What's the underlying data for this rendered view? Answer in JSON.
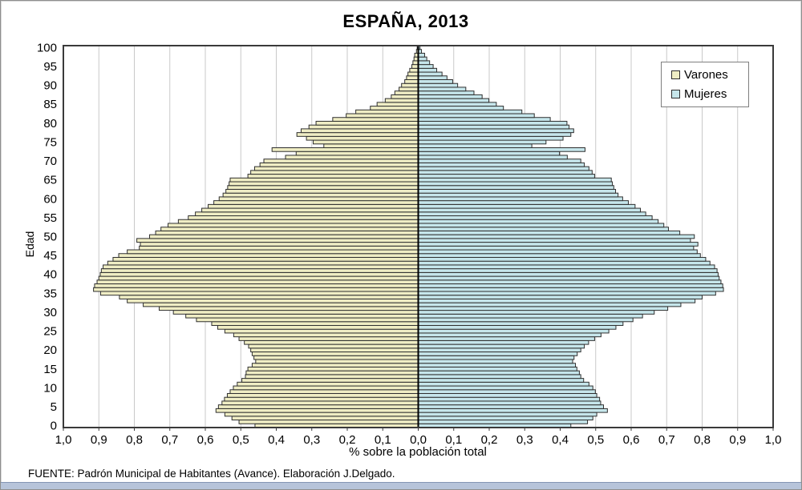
{
  "footer": {
    "source_text": "FUENTE: Padrón Municipal de Habitantes (Avance). Elaboración J.Delgado."
  },
  "chart_data": {
    "type": "bar",
    "subtype": "population-pyramid",
    "title": "ESPAÑA, 2013",
    "xlabel": "% sobre la población total",
    "ylabel": "Edad",
    "grid": "vertical-only",
    "gridline_color": "#c9c9c9",
    "bar_outline_color": "#2f2f2f",
    "axis_color": "#3a3a3a",
    "x_axis": {
      "min": -1.0,
      "max": 1.0,
      "tick_step": 0.1,
      "decimal_separator": ",",
      "tick_labels": [
        "1,0",
        "0,9",
        "0,8",
        "0,7",
        "0,6",
        "0,5",
        "0,4",
        "0,3",
        "0,2",
        "0,1",
        "0,0",
        "0,1",
        "0,2",
        "0,3",
        "0,4",
        "0,5",
        "0,6",
        "0,7",
        "0,8",
        "0,9",
        "1,0"
      ]
    },
    "y_axis": {
      "min": 0,
      "max": 100,
      "tick_step": 5
    },
    "legend": {
      "position": "top-right",
      "entries": [
        {
          "label": "Varones",
          "color": "#EFEDC4"
        },
        {
          "label": "Mujeres",
          "color": "#C6E6EB"
        }
      ]
    },
    "age_min": 0,
    "age_step": 1,
    "series": [
      {
        "name": "Varones",
        "side": "left",
        "color": "#EFEDC4",
        "values": [
          0.46,
          0.505,
          0.525,
          0.545,
          0.57,
          0.563,
          0.553,
          0.546,
          0.538,
          0.53,
          0.521,
          0.51,
          0.497,
          0.487,
          0.485,
          0.48,
          0.468,
          0.458,
          0.463,
          0.468,
          0.472,
          0.478,
          0.49,
          0.505,
          0.52,
          0.545,
          0.565,
          0.582,
          0.625,
          0.655,
          0.69,
          0.73,
          0.775,
          0.82,
          0.842,
          0.895,
          0.915,
          0.912,
          0.905,
          0.9,
          0.896,
          0.893,
          0.888,
          0.875,
          0.86,
          0.844,
          0.82,
          0.786,
          0.783,
          0.793,
          0.757,
          0.74,
          0.725,
          0.705,
          0.676,
          0.648,
          0.628,
          0.61,
          0.592,
          0.576,
          0.561,
          0.55,
          0.542,
          0.537,
          0.533,
          0.53,
          0.48,
          0.472,
          0.461,
          0.446,
          0.435,
          0.374,
          0.344,
          0.412,
          0.266,
          0.296,
          0.315,
          0.342,
          0.33,
          0.308,
          0.288,
          0.241,
          0.203,
          0.176,
          0.135,
          0.116,
          0.093,
          0.076,
          0.066,
          0.054,
          0.047,
          0.038,
          0.033,
          0.029,
          0.024,
          0.018,
          0.015,
          0.012,
          0.01,
          0.005,
          0.003
        ]
      },
      {
        "name": "Mujeres",
        "side": "right",
        "color": "#C6E6EB",
        "values": [
          0.43,
          0.477,
          0.492,
          0.503,
          0.533,
          0.522,
          0.514,
          0.511,
          0.503,
          0.499,
          0.492,
          0.481,
          0.466,
          0.458,
          0.454,
          0.447,
          0.443,
          0.435,
          0.439,
          0.448,
          0.458,
          0.468,
          0.48,
          0.497,
          0.515,
          0.537,
          0.557,
          0.577,
          0.605,
          0.632,
          0.665,
          0.703,
          0.74,
          0.78,
          0.8,
          0.838,
          0.86,
          0.858,
          0.853,
          0.848,
          0.845,
          0.842,
          0.835,
          0.822,
          0.81,
          0.795,
          0.786,
          0.776,
          0.788,
          0.767,
          0.778,
          0.737,
          0.705,
          0.692,
          0.676,
          0.659,
          0.641,
          0.626,
          0.611,
          0.592,
          0.576,
          0.563,
          0.556,
          0.551,
          0.547,
          0.544,
          0.497,
          0.49,
          0.481,
          0.468,
          0.458,
          0.42,
          0.398,
          0.47,
          0.32,
          0.36,
          0.408,
          0.43,
          0.438,
          0.425,
          0.419,
          0.372,
          0.327,
          0.292,
          0.24,
          0.22,
          0.199,
          0.18,
          0.157,
          0.134,
          0.111,
          0.097,
          0.081,
          0.067,
          0.052,
          0.042,
          0.032,
          0.024,
          0.018,
          0.009,
          0.005
        ]
      }
    ]
  }
}
